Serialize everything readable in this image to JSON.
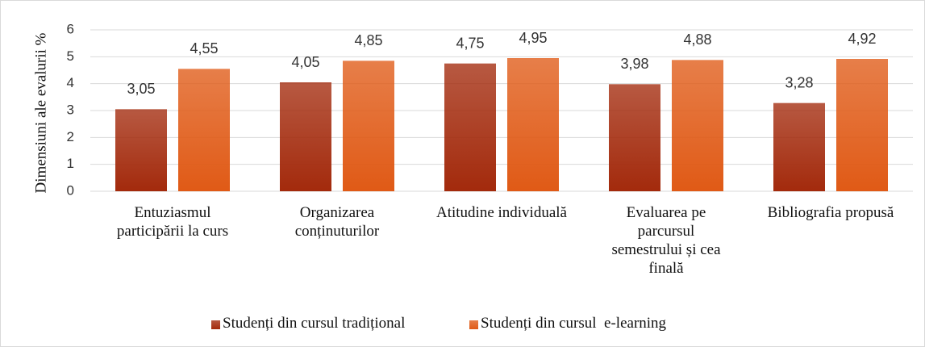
{
  "chart_data": {
    "type": "bar",
    "y_label": "Dimensiuni ale evalurii %",
    "categories": [
      "Entuziasmul participării la curs",
      "Organizarea conținuturilor",
      "Atitudine individuală",
      "Evaluarea pe parcursul semestrului și cea finală",
      "Bibliografia propusă"
    ],
    "series": [
      {
        "name": "Studenți din cursul tradițional",
        "color": "#a32a0c",
        "values": [
          3.05,
          4.05,
          4.75,
          3.98,
          3.28
        ],
        "value_labels": [
          "3,05",
          "4,05",
          "4,75",
          "3,98",
          "3,28"
        ]
      },
      {
        "name": "Studenți din cursul  e-learning",
        "color": "#e05a16",
        "values": [
          4.55,
          4.85,
          4.95,
          4.88,
          4.92
        ],
        "value_labels": [
          "4,55",
          "4,85",
          "4,95",
          "4,88",
          "4,92"
        ]
      }
    ],
    "ylim": [
      0,
      6
    ],
    "yticks": [
      0,
      1,
      2,
      3,
      4,
      5,
      6
    ],
    "grid": true,
    "legend": "bottom"
  }
}
